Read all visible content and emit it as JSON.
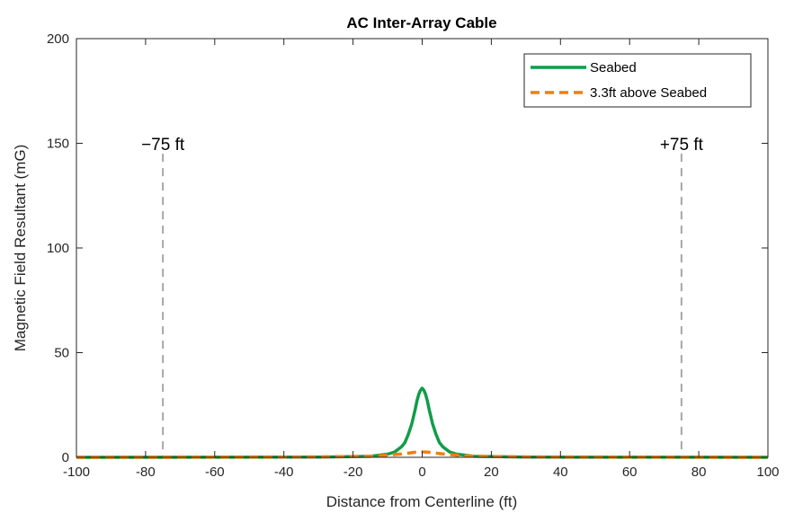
{
  "chart_data": {
    "type": "line",
    "title": "AC Inter-Array Cable",
    "xlabel": "Distance from Centerline (ft)",
    "ylabel": "Magnetic Field Resultant (mG)",
    "xlim": [
      -100,
      100
    ],
    "ylim": [
      0,
      200
    ],
    "xticks": [
      -100,
      -80,
      -60,
      -40,
      -20,
      0,
      20,
      40,
      60,
      80,
      100
    ],
    "yticks": [
      0,
      50,
      100,
      150,
      200
    ],
    "grid": false,
    "legend_position": "top-right",
    "series": [
      {
        "name": "Seabed",
        "color": "#0f9d48",
        "style": "solid",
        "x": [
          -100,
          -30,
          -15,
          -10,
          -8,
          -6,
          -5,
          -4,
          -3,
          -2,
          -1.5,
          -1,
          -0.5,
          0,
          0.5,
          1,
          1.5,
          2,
          3,
          4,
          5,
          6,
          8,
          10,
          15,
          30,
          100
        ],
        "y": [
          0,
          0.1,
          0.5,
          1.5,
          2.5,
          5,
          7,
          11,
          16,
          23,
          27,
          30,
          32,
          33,
          32,
          30,
          27,
          23,
          16,
          11,
          7,
          5,
          2.5,
          1.5,
          0.5,
          0.1,
          0
        ]
      },
      {
        "name": "3.3ft above Seabed",
        "color": "#f07f0a",
        "style": "dashed",
        "x": [
          -100,
          -30,
          -15,
          -10,
          -6,
          -4,
          -2,
          0,
          2,
          4,
          6,
          10,
          15,
          30,
          100
        ],
        "y": [
          0,
          0.2,
          0.5,
          1.0,
          1.6,
          2.0,
          2.4,
          2.6,
          2.4,
          2.0,
          1.6,
          1.0,
          0.5,
          0.2,
          0
        ]
      }
    ],
    "reference_lines": [
      {
        "x": -75,
        "label": "−75 ft",
        "color": "#a6a6a6",
        "style": "dashed"
      },
      {
        "x": 75,
        "label": "+75 ft",
        "color": "#a6a6a6",
        "style": "dashed"
      }
    ]
  }
}
